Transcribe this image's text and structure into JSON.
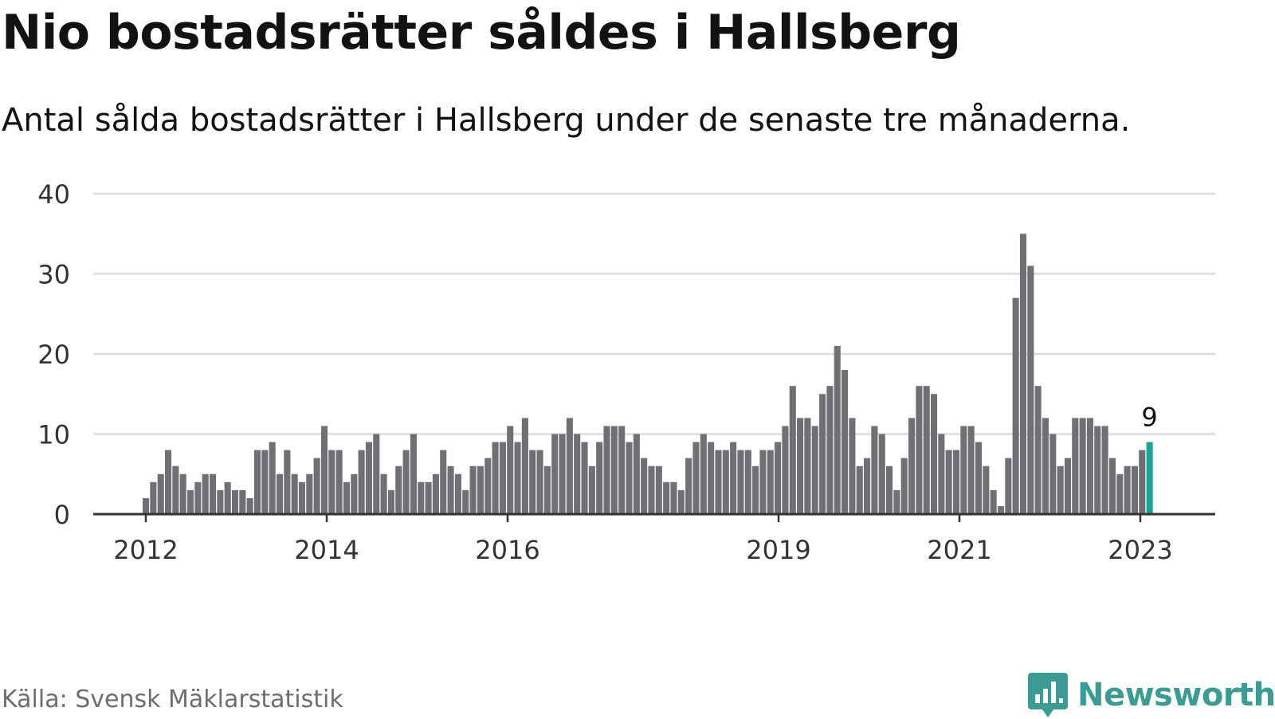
{
  "title": "Nio bostadsrätter såldes i Hallsberg",
  "subtitle": "Antal sålda bostadsrätter i Hallsberg under de senaste tre månaderna.",
  "source": "Källa: Svensk Mäklarstatistik",
  "brand": "Newsworthy",
  "colors": {
    "bar": "#707074",
    "highlight": "#1aa39a",
    "grid": "#dcdcdc",
    "axis": "#333333",
    "text": "#121212",
    "brand": "#3a9c93"
  },
  "chart_data": {
    "type": "bar",
    "x_start": "2012-01",
    "x_end": "2023-04",
    "frequency": "monthly",
    "values": [
      2,
      4,
      5,
      8,
      6,
      5,
      3,
      4,
      5,
      5,
      3,
      4,
      3,
      3,
      2,
      8,
      8,
      9,
      5,
      8,
      5,
      4,
      5,
      7,
      11,
      8,
      8,
      4,
      5,
      8,
      9,
      10,
      5,
      3,
      6,
      8,
      10,
      4,
      4,
      5,
      8,
      6,
      5,
      3,
      6,
      6,
      7,
      9,
      9,
      11,
      9,
      12,
      8,
      8,
      6,
      10,
      10,
      12,
      10,
      9,
      6,
      9,
      11,
      11,
      11,
      9,
      10,
      7,
      6,
      6,
      4,
      4,
      3,
      7,
      9,
      10,
      9,
      8,
      8,
      9,
      8,
      8,
      6,
      8,
      8,
      9,
      11,
      16,
      12,
      12,
      11,
      15,
      16,
      21,
      18,
      12,
      6,
      7,
      11,
      10,
      6,
      3,
      7,
      12,
      16,
      16,
      15,
      10,
      8,
      8,
      11,
      11,
      9,
      6,
      3,
      1,
      7,
      27,
      35,
      31,
      16,
      12,
      10,
      6,
      7,
      12,
      12,
      12,
      11,
      11,
      7,
      5,
      6,
      6,
      8,
      9
    ],
    "highlight_last": true,
    "highlight_label": "9",
    "y_ticks": [
      0,
      10,
      20,
      30,
      40
    ],
    "ylim": [
      0,
      40
    ],
    "x_ticks": [
      "2012",
      "2014",
      "2016",
      "2019",
      "2021",
      "2023"
    ],
    "grid": true,
    "legend": "none"
  }
}
